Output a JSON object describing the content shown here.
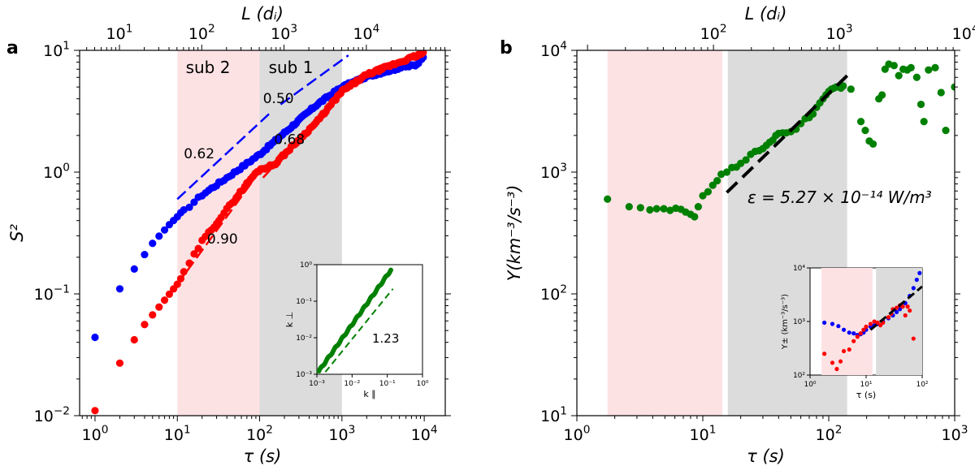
{
  "chart_data": [
    {
      "panel": "a",
      "type": "scatter",
      "xscale": "log",
      "yscale": "log",
      "xlim": [
        0.65,
        18000
      ],
      "ylim": [
        0.01,
        10
      ],
      "xlabel": "τ (s)",
      "ylabel": "S²",
      "top_axis": {
        "label": "L (dᵢ)",
        "ticks": [
          {
            "label": "10",
            "sup": "1",
            "x": 1.98
          },
          {
            "label": "10",
            "sup": "2",
            "x": 19.8
          },
          {
            "label": "10",
            "sup": "3",
            "x": 198
          },
          {
            "label": "10",
            "sup": "4",
            "x": 1980
          }
        ]
      },
      "xticks": [
        {
          "v": 1,
          "label": "10",
          "sup": "0"
        },
        {
          "v": 10,
          "label": "10",
          "sup": "1"
        },
        {
          "v": 100,
          "label": "10",
          "sup": "2"
        },
        {
          "v": 1000,
          "label": "10",
          "sup": "3"
        },
        {
          "v": 10000,
          "label": "10",
          "sup": "4"
        }
      ],
      "yticks": [
        {
          "v": 0.01,
          "label": "10",
          "sup": "−2"
        },
        {
          "v": 0.1,
          "label": "10",
          "sup": "−1"
        },
        {
          "v": 1,
          "label": "10",
          "sup": "0"
        },
        {
          "v": 10,
          "label": "10",
          "sup": "1"
        }
      ],
      "shaded": [
        {
          "name": "sub 2",
          "x0": 10,
          "x1": 100,
          "color": "#fde2e4"
        },
        {
          "name": "sub 1",
          "x0": 100,
          "x1": 1000,
          "color": "#dcdcdc"
        }
      ],
      "series": [
        {
          "name": "blue",
          "color": "#0000ff",
          "anchors": [
            [
              1,
              0.044
            ],
            [
              2,
              0.11
            ],
            [
              3,
              0.16
            ],
            [
              5,
              0.26
            ],
            [
              8,
              0.37
            ],
            [
              10,
              0.43
            ],
            [
              20,
              0.65
            ],
            [
              50,
              1.0
            ],
            [
              100,
              1.4
            ],
            [
              200,
              2.1
            ],
            [
              500,
              3.6
            ],
            [
              1000,
              5.0
            ],
            [
              2000,
              6.1
            ],
            [
              5000,
              7.2
            ],
            [
              8000,
              7.6
            ],
            [
              10000,
              9.2
            ]
          ]
        },
        {
          "name": "red",
          "color": "#ff0000",
          "anchors": [
            [
              1,
              0.011
            ],
            [
              2,
              0.027
            ],
            [
              3,
              0.042
            ],
            [
              4,
              0.056
            ],
            [
              6,
              0.078
            ],
            [
              10,
              0.12
            ],
            [
              20,
              0.27
            ],
            [
              50,
              0.6
            ],
            [
              80,
              0.9
            ],
            [
              100,
              1.05
            ],
            [
              150,
              1.15
            ],
            [
              200,
              1.4
            ],
            [
              500,
              2.6
            ],
            [
              1000,
              4.6
            ],
            [
              2000,
              6.3
            ],
            [
              5000,
              8.0
            ],
            [
              10000,
              9.5
            ]
          ]
        }
      ],
      "fit_lines": [
        {
          "color": "#0000ff",
          "label": "0.62",
          "pts": [
            [
              10,
              0.6
            ],
            [
              130,
              3.0
            ]
          ],
          "label_at": [
            12,
            1.3
          ]
        },
        {
          "color": "#0000ff",
          "label": "0.50",
          "pts": [
            [
              180,
              3.6
            ],
            [
              1200,
              9.1
            ]
          ],
          "label_at": [
            110,
            3.7
          ]
        },
        {
          "color": "#ff0000",
          "label": "0.90",
          "pts": [
            [
              10,
              0.12
            ],
            [
              110,
              1.1
            ]
          ],
          "label_at": [
            23,
            0.26
          ]
        },
        {
          "color": "#ff0000",
          "label": "0.68",
          "pts": [
            [
              110,
              0.9
            ],
            [
              1000,
              4.5
            ]
          ],
          "label_at": [
            150,
            1.7
          ]
        }
      ],
      "inset": {
        "xlabel": "k ∥",
        "ylabel": "k ⊥",
        "xticks": [
          "10⁻³",
          "10⁻²",
          "10⁻¹",
          "10⁰"
        ],
        "yticks": [
          "10⁻³",
          "10⁻²",
          "10⁻¹",
          "10⁰"
        ],
        "slope_label": "1.23",
        "color": "#008000"
      }
    },
    {
      "panel": "b",
      "type": "scatter",
      "xscale": "log",
      "yscale": "log",
      "xlim": [
        1,
        1000
      ],
      "ylim": [
        10,
        10000
      ],
      "xlabel": "τ (s)",
      "ylabel": "Y(km⁻³/s⁻³)",
      "top_axis": {
        "label": "L (dᵢ)",
        "ticks": [
          {
            "label": "10",
            "sup": "2",
            "x": 12.15
          },
          {
            "label": "10",
            "sup": "3",
            "x": 121.5
          },
          {
            "label": "10",
            "sup": "4",
            "x": 1215
          }
        ]
      },
      "xticks": [
        {
          "v": 1,
          "label": "10",
          "sup": "0"
        },
        {
          "v": 10,
          "label": "10",
          "sup": "1"
        },
        {
          "v": 100,
          "label": "10",
          "sup": "2"
        },
        {
          "v": 1000,
          "label": "10",
          "sup": "3"
        }
      ],
      "yticks": [
        {
          "v": 10,
          "label": "10",
          "sup": "1"
        },
        {
          "v": 100,
          "label": "10",
          "sup": "2"
        },
        {
          "v": 1000,
          "label": "10",
          "sup": "3"
        },
        {
          "v": 10000,
          "label": "10",
          "sup": "4"
        }
      ],
      "shaded": [
        {
          "name": "pink",
          "x0": 1.75,
          "x1": 14.3,
          "color": "#fde2e4"
        },
        {
          "name": "gray",
          "x0": 15.8,
          "x1": 140,
          "color": "#dcdcdc"
        }
      ],
      "series": [
        {
          "name": "green",
          "color": "#008000",
          "points": [
            [
              1.75,
              600
            ],
            [
              2.6,
              520
            ],
            [
              3.2,
              510
            ],
            [
              3.8,
              490
            ],
            [
              4.3,
              500
            ],
            [
              4.9,
              500
            ],
            [
              5.5,
              485
            ],
            [
              6.1,
              505
            ],
            [
              6.7,
              495
            ],
            [
              7.3,
              470
            ],
            [
              8.0,
              450
            ],
            [
              8.6,
              430
            ],
            [
              9.2,
              520
            ],
            [
              10.0,
              640
            ],
            [
              11.0,
              690
            ],
            [
              12.0,
              780
            ],
            [
              13.0,
              850
            ],
            [
              14.0,
              960
            ],
            [
              15.5,
              1000
            ],
            [
              17.0,
              1090
            ],
            [
              18.5,
              1100
            ],
            [
              20.0,
              1180
            ],
            [
              22.0,
              1260
            ],
            [
              24.0,
              1400
            ],
            [
              26.0,
              1480
            ],
            [
              28.0,
              1500
            ],
            [
              30.0,
              1560
            ],
            [
              32.0,
              1660
            ],
            [
              34.0,
              1760
            ],
            [
              36.0,
              1830
            ],
            [
              38.0,
              2000
            ],
            [
              40.0,
              2080
            ],
            [
              43.0,
              2100
            ],
            [
              46.0,
              2100
            ],
            [
              50.0,
              2150
            ],
            [
              55.0,
              2250
            ],
            [
              60.0,
              2500
            ],
            [
              65.0,
              2750
            ],
            [
              70.0,
              2800
            ],
            [
              75.0,
              3000
            ],
            [
              80.0,
              3400
            ],
            [
              85.0,
              3700
            ],
            [
              90.0,
              4000
            ],
            [
              95.0,
              4300
            ],
            [
              100.0,
              4600
            ],
            [
              105.0,
              4800
            ],
            [
              110.0,
              4900
            ],
            [
              115.0,
              5000
            ],
            [
              120.0,
              5000
            ],
            [
              125.0,
              4900
            ],
            [
              130.0,
              5100
            ],
            [
              150.0,
              4800
            ],
            [
              180.0,
              2600
            ],
            [
              195.0,
              2200
            ],
            [
              210.0,
              1800
            ],
            [
              225.0,
              1700
            ],
            [
              250.0,
              4000
            ],
            [
              265.0,
              4300
            ],
            [
              280.0,
              7000
            ],
            [
              300.0,
              7700
            ],
            [
              330.0,
              7500
            ],
            [
              360.0,
              6200
            ],
            [
              390.0,
              7000
            ],
            [
              420.0,
              6900
            ],
            [
              450.0,
              7200
            ],
            [
              500.0,
              6000
            ],
            [
              540.0,
              3600
            ],
            [
              570.0,
              2600
            ],
            [
              620.0,
              6900
            ],
            [
              700.0,
              7200
            ],
            [
              780.0,
              4500
            ],
            [
              850.0,
              2200
            ],
            [
              1000.0,
              5000
            ]
          ]
        }
      ],
      "fit_lines": [
        {
          "color": "#000000",
          "pts": [
            [
              15.5,
              680
            ],
            [
              140,
              6200
            ]
          ]
        }
      ],
      "annotation": {
        "text": "ε = 5.27 × 10⁻¹⁴ W/m³",
        "at": [
          17,
          560
        ]
      },
      "inset": {
        "xlabel": "τ (s)",
        "ylabel": "Y± (km⁻³/s⁻³)",
        "xticks": [
          "10⁰",
          "10¹",
          "10²"
        ],
        "yticks": [
          "10²",
          "10³",
          "10⁴"
        ]
      }
    }
  ],
  "labels": {
    "panel_a": "a",
    "panel_b": "b",
    "sub2": "sub 2",
    "sub1": "sub 1"
  }
}
